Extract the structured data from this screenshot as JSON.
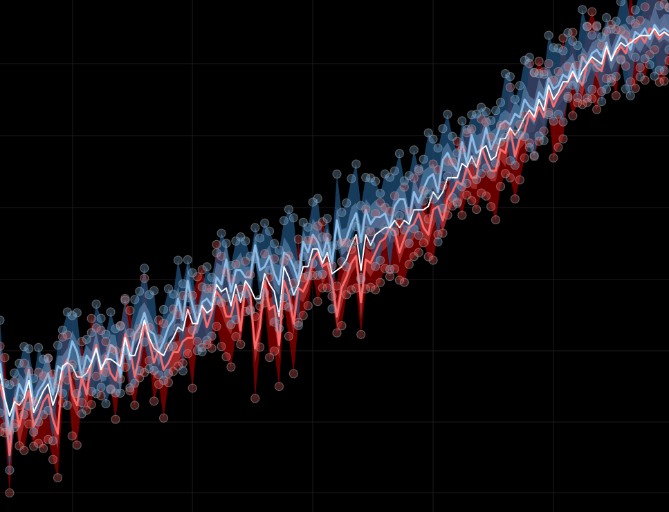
{
  "chart_data": {
    "type": "line",
    "title": "",
    "xlabel": "",
    "ylabel": "",
    "grid": true,
    "legend": "none",
    "xlim": [
      0,
      139
    ],
    "ylim": [
      0,
      14.4
    ],
    "x": [
      0,
      1,
      2,
      3,
      4,
      5,
      6,
      7,
      8,
      9,
      10,
      11,
      12,
      13,
      14,
      15,
      16,
      17,
      18,
      19,
      20,
      21,
      22,
      23,
      24,
      25,
      26,
      27,
      28,
      29,
      30,
      31,
      32,
      33,
      34,
      35,
      36,
      37,
      38,
      39,
      40,
      41,
      42,
      43,
      44,
      45,
      46,
      47,
      48,
      49,
      50,
      51,
      52,
      53,
      54,
      55,
      56,
      57,
      58,
      59,
      60,
      61,
      62,
      63,
      64,
      65,
      66,
      67,
      68,
      69,
      70,
      71,
      72,
      73,
      74,
      75,
      76,
      77,
      78,
      79,
      80,
      81,
      82,
      83,
      84,
      85,
      86,
      87,
      88,
      89,
      90,
      91,
      92,
      93,
      94,
      95,
      96,
      97,
      98,
      99,
      100,
      101,
      102,
      103,
      104,
      105,
      106,
      107,
      108,
      109,
      110,
      111,
      112,
      113,
      114,
      115,
      116,
      117,
      118,
      119,
      120,
      121,
      122,
      123,
      124,
      125,
      126,
      127,
      128,
      129,
      130,
      131,
      132,
      133,
      134,
      135,
      136,
      137,
      138,
      139
    ],
    "series": [
      {
        "color": "#ff6b6b",
        "band_color": "#8b0000",
        "values": [
          3.6,
          3.0,
          1.6,
          3.2,
          2.4,
          3.0,
          3.4,
          2.4,
          2.7,
          3.1,
          3.3,
          2.6,
          2.2,
          4.0,
          4.3,
          3.3,
          3.0,
          3.8,
          3.3,
          4.2,
          4.7,
          3.9,
          4.4,
          3.9,
          3.7,
          4.3,
          5.0,
          4.6,
          3.8,
          4.4,
          5.3,
          4.8,
          4.2,
          4.6,
          4.0,
          4.2,
          4.5,
          4.5,
          4.8,
          4.9,
          4.9,
          5.4,
          5.8,
          5.2,
          5.6,
          6.2,
          6.0,
          5.5,
          5.5,
          6.1,
          5.1,
          6.4,
          6.1,
          4.6,
          5.2,
          6.5,
          5.7,
          5.8,
          4.7,
          6.5,
          6.1,
          5.3,
          6.3,
          6.2,
          6.5,
          7.1,
          7.3,
          6.9,
          7.0,
          6.5,
          5.5,
          6.3,
          6.6,
          7.0,
          7.2,
          5.9,
          7.1,
          7.0,
          7.3,
          7.6,
          7.7,
          8.0,
          7.9,
          7.3,
          7.7,
          8.0,
          8.1,
          8.4,
          8.0,
          7.8,
          8.5,
          8.6,
          8.2,
          8.8,
          9.0,
          9.3,
          9.2,
          9.7,
          9.4,
          9.4,
          10.3,
          9.9,
          9.6,
          9.6,
          10.2,
          10.1,
          10.8,
          10.0,
          10.5,
          10.7,
          11.2,
          11.0,
          11.4,
          11.1,
          11.8,
          11.4,
          11.7,
          11.9,
          12.1,
          12.3,
          12.2,
          12.0,
          12.6,
          12.7,
          12.5,
          12.4,
          13.0,
          12.8,
          12.9,
          13.1,
          12.9,
          13.3,
          13.2,
          13.4,
          13.2,
          13.6,
          13.5,
          13.3,
          13.5,
          13.4
        ]
      },
      {
        "color": "#8fc1ec",
        "band_color": "#1f4f7a",
        "values": [
          4.2,
          3.1,
          2.2,
          3.0,
          3.6,
          3.3,
          4.0,
          3.0,
          3.4,
          3.6,
          3.9,
          3.3,
          4.1,
          4.0,
          4.2,
          4.8,
          4.5,
          3.8,
          4.4,
          4.2,
          4.6,
          4.1,
          4.2,
          4.7,
          4.6,
          3.8,
          4.9,
          4.3,
          5.0,
          5.2,
          5.6,
          5.1,
          5.0,
          4.5,
          4.8,
          5.2,
          5.4,
          6.0,
          5.4,
          6.5,
          5.8,
          5.3,
          5.9,
          6.0,
          5.8,
          6.6,
          6.4,
          7.1,
          6.2,
          6.8,
          6.8,
          6.6,
          6.6,
          7.5,
          6.8,
          6.9,
          7.2,
          6.7,
          6.4,
          7.3,
          7.2,
          6.9,
          6.5,
          7.6,
          7.3,
          7.8,
          7.6,
          7.2,
          7.7,
          7.0,
          8.2,
          7.5,
          7.7,
          8.1,
          8.4,
          7.6,
          8.5,
          8.1,
          8.3,
          8.3,
          8.4,
          8.0,
          8.6,
          8.8,
          8.8,
          8.2,
          9.0,
          8.7,
          9.1,
          9.4,
          9.5,
          9.0,
          9.9,
          10.1,
          9.8,
          9.6,
          10.4,
          9.8,
          10.6,
          10.1,
          10.2,
          10.8,
          10.2,
          10.5,
          10.9,
          11.0,
          10.9,
          11.2,
          11.1,
          11.6,
          11.4,
          11.3,
          11.8,
          11.6,
          12.2,
          11.9,
          12.0,
          12.3,
          12.2,
          12.6,
          12.1,
          12.8,
          12.6,
          12.9,
          13.0,
          12.8,
          13.2,
          12.7,
          13.1,
          13.4,
          13.3,
          13.0,
          13.5,
          13.4,
          13.6,
          13.3,
          13.7,
          13.5,
          13.6,
          13.5
        ]
      },
      {
        "color": "#ffffff",
        "values": [
          3.9,
          3.2,
          2.7,
          3.1,
          3.0,
          3.2,
          3.7,
          2.8,
          3.1,
          3.4,
          3.6,
          3.0,
          3.4,
          4.1,
          4.2,
          4.1,
          3.8,
          3.8,
          3.9,
          4.2,
          4.6,
          4.0,
          4.3,
          4.3,
          4.2,
          4.1,
          4.9,
          4.4,
          4.4,
          4.8,
          5.4,
          4.9,
          4.6,
          4.5,
          4.4,
          4.7,
          4.9,
          5.2,
          5.1,
          5.7,
          5.3,
          5.3,
          5.8,
          5.6,
          5.7,
          6.4,
          6.2,
          6.3,
          5.8,
          6.4,
          5.9,
          6.5,
          6.3,
          6.0,
          6.0,
          6.7,
          6.4,
          6.2,
          5.5,
          6.9,
          6.6,
          6.1,
          6.4,
          6.9,
          6.9,
          7.4,
          7.4,
          7.0,
          7.3,
          6.7,
          6.8,
          6.9,
          7.1,
          7.5,
          7.8,
          6.8,
          7.8,
          7.5,
          7.8,
          7.9,
          8.0,
          8.0,
          8.2,
          8.0,
          8.2,
          8.1,
          8.5,
          8.5,
          8.5,
          8.6,
          9.0,
          8.8,
          9.0,
          9.4,
          9.4,
          9.4,
          9.8,
          9.7,
          10.0,
          9.7,
          10.2,
          10.3,
          9.9,
          10.0,
          10.5,
          10.5,
          10.8,
          10.6,
          10.8,
          11.1,
          11.3,
          11.1,
          11.6,
          11.3,
          12.0,
          11.6,
          11.8,
          12.1,
          12.1,
          12.4,
          12.1,
          12.4,
          12.6,
          12.8,
          12.7,
          12.6,
          13.1,
          12.7,
          13.0,
          13.2,
          13.1,
          13.2,
          13.3,
          13.4,
          13.4,
          13.4,
          13.6,
          13.4,
          13.5,
          13.4
        ]
      }
    ]
  }
}
